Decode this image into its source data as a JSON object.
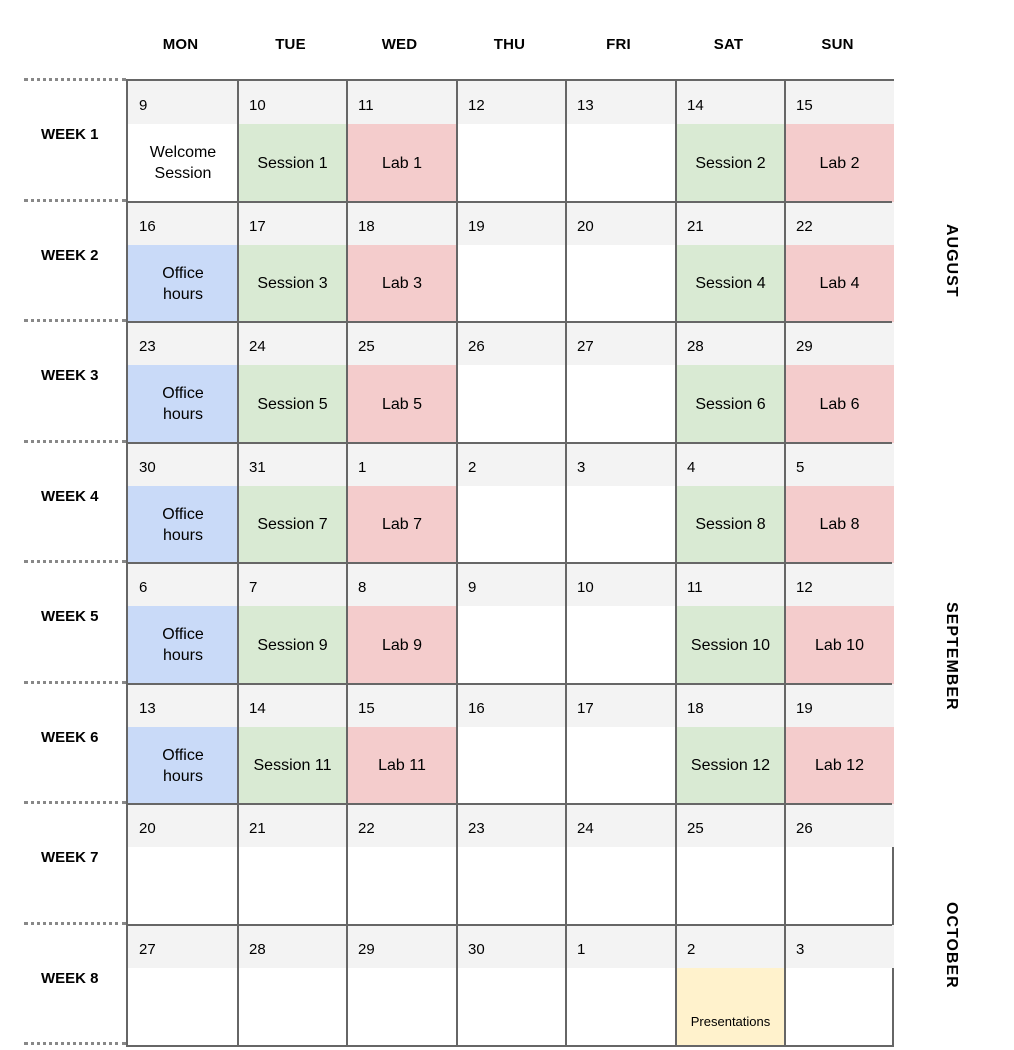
{
  "days": [
    "MON",
    "TUE",
    "WED",
    "THU",
    "FRI",
    "SAT",
    "SUN"
  ],
  "months": [
    "AUGUST",
    "SEPTEMBER",
    "OCTOBER"
  ],
  "weeks": [
    {
      "label": "WEEK 1",
      "dates": [
        "9",
        "10",
        "11",
        "12",
        "13",
        "14",
        "15"
      ],
      "events": [
        {
          "text": "Welcome Session",
          "kind": "welcome"
        },
        {
          "text": "Session 1",
          "kind": "session"
        },
        {
          "text": "Lab 1",
          "kind": "lab"
        },
        null,
        null,
        {
          "text": "Session 2",
          "kind": "session"
        },
        {
          "text": "Lab 2",
          "kind": "lab"
        }
      ]
    },
    {
      "label": "WEEK 2",
      "dates": [
        "16",
        "17",
        "18",
        "19",
        "20",
        "21",
        "22"
      ],
      "events": [
        {
          "text": "Office hours",
          "kind": "office"
        },
        {
          "text": "Session 3",
          "kind": "session"
        },
        {
          "text": "Lab 3",
          "kind": "lab"
        },
        null,
        null,
        {
          "text": "Session 4",
          "kind": "session"
        },
        {
          "text": "Lab 4",
          "kind": "lab"
        }
      ]
    },
    {
      "label": "WEEK 3",
      "dates": [
        "23",
        "24",
        "25",
        "26",
        "27",
        "28",
        "29"
      ],
      "events": [
        {
          "text": "Office hours",
          "kind": "office"
        },
        {
          "text": "Session 5",
          "kind": "session"
        },
        {
          "text": "Lab 5",
          "kind": "lab"
        },
        null,
        null,
        {
          "text": "Session 6",
          "kind": "session"
        },
        {
          "text": "Lab 6",
          "kind": "lab"
        }
      ]
    },
    {
      "label": "WEEK 4",
      "dates": [
        "30",
        "31",
        "1",
        "2",
        "3",
        "4",
        "5"
      ],
      "events": [
        {
          "text": "Office hours",
          "kind": "office"
        },
        {
          "text": "Session 7",
          "kind": "session"
        },
        {
          "text": "Lab 7",
          "kind": "lab"
        },
        null,
        null,
        {
          "text": "Session 8",
          "kind": "session"
        },
        {
          "text": "Lab 8",
          "kind": "lab"
        }
      ]
    },
    {
      "label": "WEEK 5",
      "dates": [
        "6",
        "7",
        "8",
        "9",
        "10",
        "11",
        "12"
      ],
      "events": [
        {
          "text": "Office hours",
          "kind": "office"
        },
        {
          "text": "Session 9",
          "kind": "session"
        },
        {
          "text": "Lab 9",
          "kind": "lab"
        },
        null,
        null,
        {
          "text": "Session 10",
          "kind": "session"
        },
        {
          "text": "Lab 10",
          "kind": "lab"
        }
      ]
    },
    {
      "label": "WEEK 6",
      "dates": [
        "13",
        "14",
        "15",
        "16",
        "17",
        "18",
        "19"
      ],
      "events": [
        {
          "text": "Office hours",
          "kind": "office"
        },
        {
          "text": "Session 11",
          "kind": "session"
        },
        {
          "text": "Lab 11",
          "kind": "lab"
        },
        null,
        null,
        {
          "text": "Session 12",
          "kind": "session"
        },
        {
          "text": "Lab 12",
          "kind": "lab"
        }
      ]
    },
    {
      "label": "WEEK 7",
      "dates": [
        "20",
        "21",
        "22",
        "23",
        "24",
        "25",
        "26"
      ],
      "events": [
        null,
        null,
        null,
        null,
        null,
        null,
        null
      ]
    },
    {
      "label": "WEEK 8",
      "dates": [
        "27",
        "28",
        "29",
        "30",
        "1",
        "2",
        "3"
      ],
      "events": [
        null,
        null,
        null,
        null,
        null,
        {
          "text": "Presentations",
          "kind": "pres"
        },
        null
      ]
    }
  ]
}
